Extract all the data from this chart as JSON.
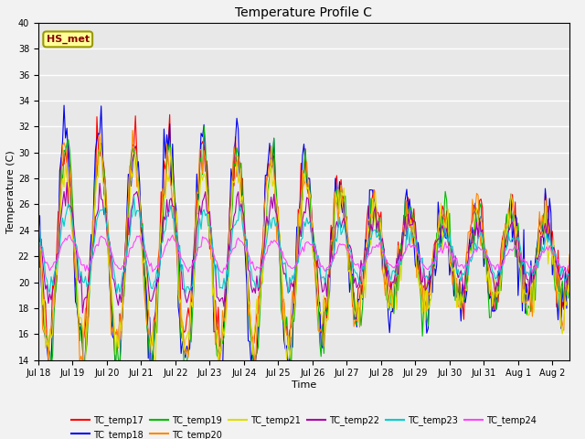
{
  "title": "Temperature Profile C",
  "xlabel": "Time",
  "ylabel": "Temperature (C)",
  "ylim": [
    14,
    40
  ],
  "annotation": "HS_met",
  "annotation_color": "#8B0000",
  "annotation_bg": "#FFFF99",
  "annotation_edge": "#999900",
  "fig_facecolor": "#F2F2F2",
  "ax_facecolor": "#E8E8E8",
  "grid_color": "#FFFFFF",
  "series_colors": {
    "TC_temp17": "#FF0000",
    "TC_temp18": "#0000EE",
    "TC_temp19": "#00BB00",
    "TC_temp20": "#FF8800",
    "TC_temp21": "#DDDD00",
    "TC_temp22": "#AA00AA",
    "TC_temp23": "#00CCCC",
    "TC_temp24": "#FF44FF"
  },
  "xtick_labels": [
    "Jul 18",
    "Jul 19",
    "Jul 20",
    "Jul 21",
    "Jul 22",
    "Jul 23",
    "Jul 24",
    "Jul 25",
    "Jul 26",
    "Jul 27",
    "Jul 28",
    "Jul 29",
    "Jul 30",
    "Jul 31",
    "Aug 1",
    "Aug 2"
  ],
  "yticks": [
    14,
    16,
    18,
    20,
    22,
    24,
    26,
    28,
    30,
    32,
    34,
    36,
    38,
    40
  ]
}
